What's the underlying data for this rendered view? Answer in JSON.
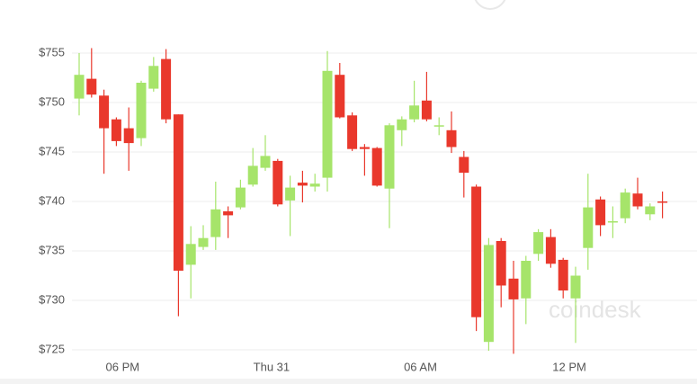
{
  "chart_data": {
    "type": "candlestick",
    "watermark": "coindesk",
    "up_color": "#a6e46a",
    "down_color": "#e9382c",
    "open": [
      750.4,
      752.4,
      750.7,
      748.3,
      747.4,
      746.4,
      751.4,
      754.4,
      748.8,
      733.6,
      735.4,
      736.4,
      739.0,
      739.4,
      741.7,
      743.4,
      744.1,
      740.1,
      741.9,
      741.5,
      742.4,
      752.8,
      748.7,
      745.5,
      745.4,
      741.3,
      747.2,
      748.3,
      750.2,
      747.6,
      747.2,
      744.5,
      741.5,
      725.8,
      736.0,
      732.2,
      730.2,
      734.7,
      736.4,
      734.1,
      730.2,
      735.3,
      740.2,
      737.9,
      738.3,
      740.8,
      738.7,
      740.0
    ],
    "high": [
      755.0,
      755.5,
      751.3,
      748.5,
      749.5,
      752.2,
      754.6,
      755.4,
      748.8,
      737.5,
      737.6,
      742.0,
      739.5,
      742.2,
      745.4,
      746.7,
      744.3,
      742.6,
      743.1,
      742.8,
      755.2,
      754.0,
      749.0,
      745.8,
      745.5,
      747.9,
      748.6,
      752.2,
      753.1,
      748.5,
      749.1,
      745.1,
      741.7,
      736.3,
      736.3,
      734.0,
      734.5,
      737.2,
      737.2,
      734.3,
      733.4,
      742.8,
      740.5,
      739.5,
      741.3,
      742.4,
      739.8,
      741.0
    ],
    "low": [
      748.7,
      750.5,
      742.8,
      745.6,
      743.1,
      745.6,
      751.1,
      747.9,
      728.4,
      730.2,
      735.1,
      735.1,
      736.3,
      739.2,
      741.5,
      743.1,
      739.5,
      736.5,
      739.9,
      741.0,
      741.0,
      748.4,
      745.1,
      742.6,
      741.5,
      737.3,
      745.6,
      748.0,
      748.1,
      746.7,
      744.9,
      740.4,
      726.9,
      724.9,
      729.3,
      724.6,
      727.6,
      734.0,
      733.3,
      730.2,
      725.7,
      733.1,
      736.5,
      736.3,
      737.8,
      739.2,
      738.1,
      738.3
    ],
    "close": [
      752.8,
      750.8,
      747.4,
      746.1,
      745.9,
      752.0,
      753.7,
      748.3,
      733.0,
      735.7,
      736.3,
      739.2,
      738.6,
      741.4,
      743.6,
      744.6,
      739.7,
      741.4,
      741.6,
      741.8,
      753.2,
      748.5,
      745.3,
      745.3,
      741.6,
      747.7,
      748.3,
      749.7,
      748.3,
      747.7,
      745.5,
      742.9,
      728.3,
      735.6,
      731.5,
      730.1,
      734.0,
      736.9,
      733.7,
      731.0,
      732.5,
      739.4,
      737.6,
      738.0,
      740.9,
      739.5,
      739.5,
      739.9
    ],
    "xlim": [
      -0.5,
      47.5
    ],
    "xticks": [
      {
        "value": 3.5,
        "label": "06 PM"
      },
      {
        "value": 15.5,
        "label": "Thu 31"
      },
      {
        "value": 27.5,
        "label": "06 AM"
      },
      {
        "value": 39.5,
        "label": "12 PM"
      }
    ],
    "ylim": [
      724,
      757
    ],
    "yticks": [
      {
        "value": 725,
        "label": "$725"
      },
      {
        "value": 730,
        "label": "$730"
      },
      {
        "value": 735,
        "label": "$735"
      },
      {
        "value": 740,
        "label": "$740"
      },
      {
        "value": 745,
        "label": "$745"
      },
      {
        "value": 750,
        "label": "$750"
      },
      {
        "value": 755,
        "label": "$755"
      }
    ],
    "grid": true
  }
}
